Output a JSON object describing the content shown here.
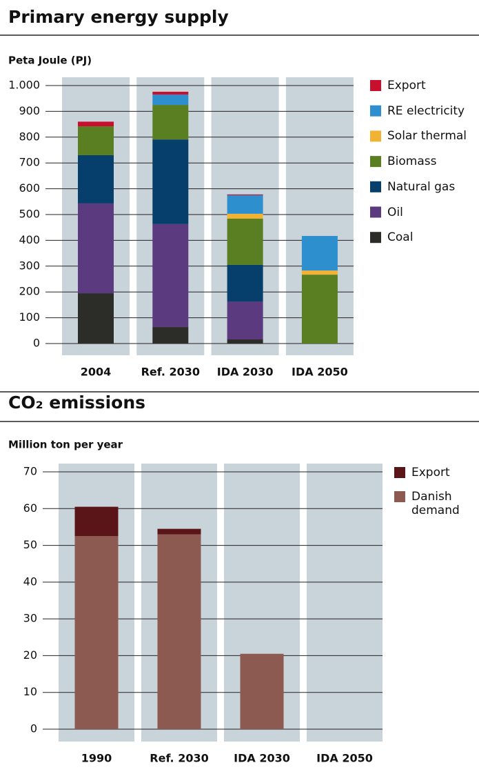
{
  "chart_data": [
    {
      "type": "bar",
      "stacked": true,
      "title": "Primary energy supply",
      "y_label": "Peta Joule (PJ)",
      "categories": [
        "2004",
        "Ref. 2030",
        "IDA 2030",
        "IDA 2050"
      ],
      "series": [
        {
          "name": "Export",
          "color": "#c8102e",
          "values": [
            18,
            11,
            3,
            0
          ]
        },
        {
          "name": "RE electricity",
          "color": "#2e8fce",
          "values": [
            0,
            40,
            72,
            134
          ]
        },
        {
          "name": "Solar thermal",
          "color": "#f2b234",
          "values": [
            0,
            0,
            19,
            16
          ]
        },
        {
          "name": "Biomass",
          "color": "#5a7f23",
          "values": [
            112,
            134,
            179,
            267
          ]
        },
        {
          "name": "Natural gas",
          "color": "#063f6b",
          "values": [
            187,
            328,
            142,
            0
          ]
        },
        {
          "name": "Oil",
          "color": "#5b3a80",
          "values": [
            348,
            399,
            147,
            0
          ]
        },
        {
          "name": "Coal",
          "color": "#2c2c28",
          "values": [
            195,
            64,
            16,
            0
          ]
        }
      ],
      "ylim": [
        0,
        1000
      ],
      "yticks": [
        0,
        100,
        200,
        300,
        400,
        500,
        600,
        700,
        800,
        900,
        {
          "value": 1000,
          "label": "1.000"
        }
      ],
      "grid": true,
      "legend": "right"
    },
    {
      "type": "bar",
      "stacked": true,
      "title": "CO₂ emissions",
      "y_label": "Million ton per year",
      "categories": [
        "1990",
        "Ref. 2030",
        "IDA 2030",
        "IDA 2050"
      ],
      "series": [
        {
          "name": "Export",
          "color": "#5a1518",
          "values": [
            8,
            1.5,
            0,
            0
          ]
        },
        {
          "name": "Danish demand",
          "color": "#8c5a50",
          "values": [
            52.5,
            53,
            20.5,
            0
          ]
        }
      ],
      "ylim": [
        0,
        70
      ],
      "yticks": [
        0,
        10,
        20,
        30,
        40,
        50,
        60,
        70
      ],
      "grid": true,
      "legend": "right"
    }
  ]
}
